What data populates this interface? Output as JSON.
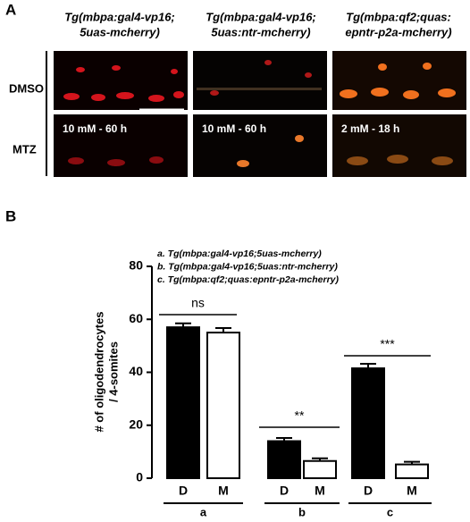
{
  "panel_a": {
    "label": "A",
    "column_headers": [
      [
        "Tg(mbpa:gal4-vp16;",
        "5uas-mcherry)"
      ],
      [
        "Tg(mbpa:gal4-vp16;",
        "5uas:ntr-mcherry)"
      ],
      [
        "Tg(mbpa:qf2;quas:",
        "epntr-p2a-mcherry)"
      ]
    ],
    "row_labels": [
      "DMSO",
      "MTZ"
    ],
    "treatments": [
      "10 mM - 60 h",
      "10 mM - 60 h",
      "2 mM - 18 h"
    ]
  },
  "chart_data": {
    "type": "bar",
    "panel_label": "B",
    "y_label": [
      "# of oligodendrocytes",
      "/ 4-somites"
    ],
    "legend_entries": [
      "a. Tg(mbpa:gal4-vp16;5uas-mcherry)",
      "b. Tg(mbpa:gal4-vp16;5uas:ntr-mcherry)",
      "c. Tg(mbpa:qf2;quas:epntr-p2a-mcherry)"
    ],
    "categories": [
      "D",
      "M",
      "D",
      "M",
      "D",
      "M"
    ],
    "groups": [
      "a",
      "b",
      "c"
    ],
    "values": [
      57,
      55,
      14,
      6.5,
      41.5,
      5.2
    ],
    "errors": [
      1.5,
      1.7,
      1.2,
      1.0,
      1.7,
      1.0
    ],
    "colors": [
      "#000000",
      "#ffffff",
      "#000000",
      "#ffffff",
      "#000000",
      "#ffffff"
    ],
    "significance": [
      "ns",
      "**",
      "***"
    ],
    "ylim": [
      0,
      80
    ],
    "yticks": [
      0,
      20,
      40,
      60,
      80
    ]
  }
}
